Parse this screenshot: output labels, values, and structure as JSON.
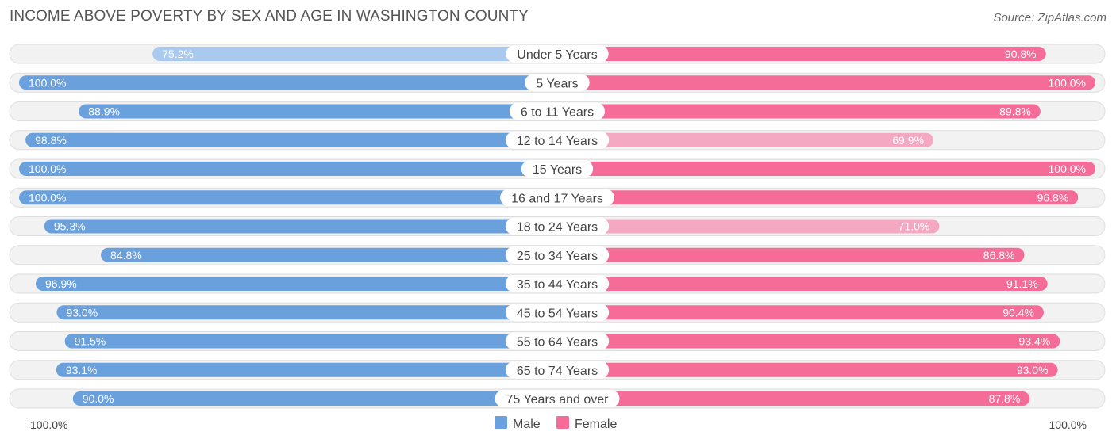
{
  "title": "INCOME ABOVE POVERTY BY SEX AND AGE IN WASHINGTON COUNTY",
  "source": "Source: ZipAtlas.com",
  "colors": {
    "male_strong": "#6aa0dc",
    "male_light": "#a9c9ee",
    "female_strong": "#f46c97",
    "female_light": "#f5a8c1"
  },
  "chart_data": {
    "type": "bar",
    "orientation": "horizontal-diverging",
    "title": "INCOME ABOVE POVERTY BY SEX AND AGE IN WASHINGTON COUNTY",
    "categories": [
      "Under 5 Years",
      "5 Years",
      "6 to 11 Years",
      "12 to 14 Years",
      "15 Years",
      "16 and 17 Years",
      "18 to 24 Years",
      "25 to 34 Years",
      "35 to 44 Years",
      "45 to 54 Years",
      "55 to 64 Years",
      "65 to 74 Years",
      "75 Years and over"
    ],
    "series": [
      {
        "name": "Male",
        "values": [
          75.2,
          100.0,
          88.9,
          98.8,
          100.0,
          100.0,
          95.3,
          84.8,
          96.9,
          93.0,
          91.5,
          93.1,
          90.0
        ],
        "labels": [
          "75.2%",
          "100.0%",
          "88.9%",
          "98.8%",
          "100.0%",
          "100.0%",
          "95.3%",
          "84.8%",
          "96.9%",
          "93.0%",
          "91.5%",
          "93.1%",
          "90.0%"
        ]
      },
      {
        "name": "Female",
        "values": [
          90.8,
          100.0,
          89.8,
          69.9,
          100.0,
          96.8,
          71.0,
          86.8,
          91.1,
          90.4,
          93.4,
          93.0,
          87.8
        ],
        "labels": [
          "90.8%",
          "100.0%",
          "89.8%",
          "69.9%",
          "100.0%",
          "96.8%",
          "71.0%",
          "86.8%",
          "91.1%",
          "90.4%",
          "93.4%",
          "93.0%",
          "87.8%"
        ]
      }
    ],
    "xlim": [
      0,
      100
    ],
    "axis_left_label": "100.0%",
    "axis_right_label": "100.0%",
    "legend": [
      "Male",
      "Female"
    ],
    "legend_position": "bottom-center"
  }
}
